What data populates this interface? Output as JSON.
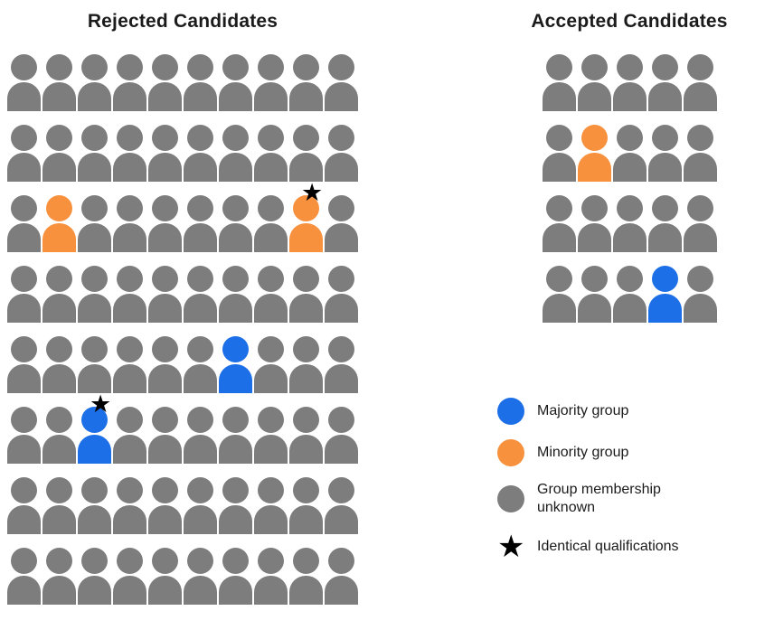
{
  "titles": {
    "rejected": "Rejected Candidates",
    "accepted": "Accepted Candidates"
  },
  "colors": {
    "majority": "#1D6FE8",
    "minority": "#F8913E",
    "unknown": "#7D7D7D",
    "star": "#000000"
  },
  "star_glyph": "★",
  "grids": {
    "rejected": {
      "rows": 8,
      "cols": 10,
      "default_group": "unknown",
      "special": [
        {
          "row": 3,
          "col": 2,
          "group": "minority",
          "star": false
        },
        {
          "row": 3,
          "col": 9,
          "group": "minority",
          "star": true
        },
        {
          "row": 5,
          "col": 7,
          "group": "majority",
          "star": false
        },
        {
          "row": 6,
          "col": 3,
          "group": "majority",
          "star": true
        }
      ]
    },
    "accepted": {
      "rows": 4,
      "cols": 5,
      "default_group": "unknown",
      "special": [
        {
          "row": 2,
          "col": 2,
          "group": "minority",
          "star": false
        },
        {
          "row": 4,
          "col": 4,
          "group": "majority",
          "star": false
        }
      ]
    }
  },
  "legend": {
    "items": [
      {
        "swatch": "circle",
        "group": "majority",
        "label": "Majority group"
      },
      {
        "swatch": "circle",
        "group": "minority",
        "label": "Minority group"
      },
      {
        "swatch": "circle",
        "group": "unknown",
        "label": "Group membership\nunknown"
      },
      {
        "swatch": "star",
        "group": "star",
        "label": "Identical qualifications"
      }
    ]
  }
}
